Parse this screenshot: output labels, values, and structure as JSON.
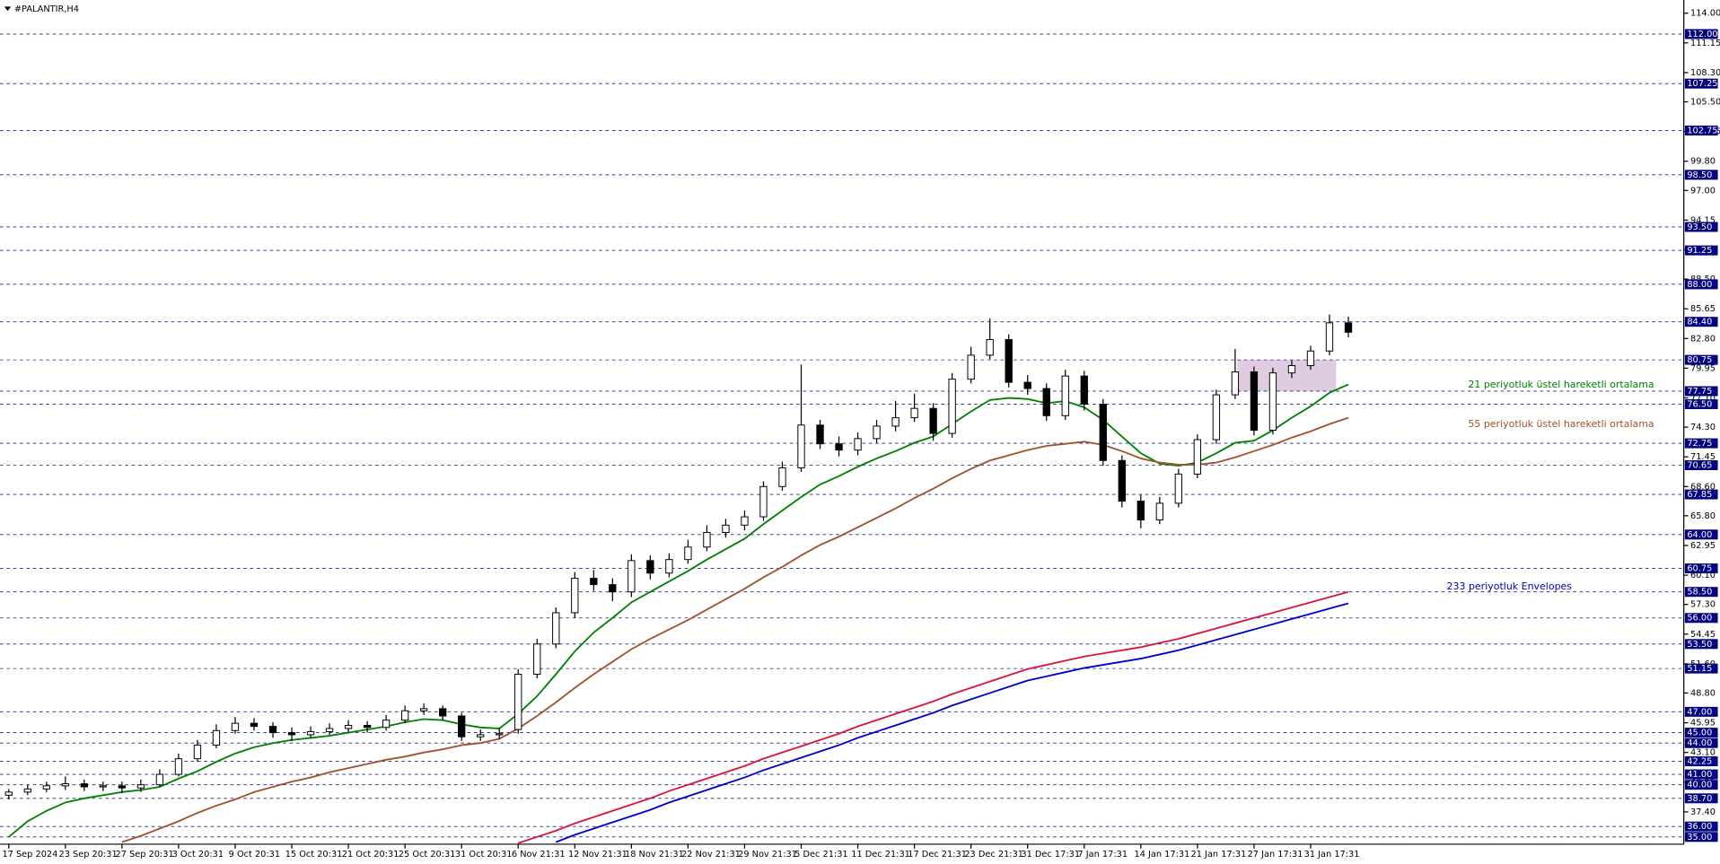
{
  "chart_data": {
    "type": "candlestick",
    "title": "#PALANTIR,H4",
    "categories": [
      "17 Sep 2024",
      null,
      null,
      "23 Sep 20:31",
      null,
      null,
      "27 Sep 20:31",
      null,
      null,
      "3 Oct 20:31",
      null,
      null,
      "9 Oct 20:31",
      null,
      null,
      "15 Oct 20:31",
      null,
      null,
      "21 Oct 20:31",
      null,
      null,
      "25 Oct 20:31",
      null,
      null,
      "31 Oct 20:31",
      null,
      null,
      "6 Nov 21:31",
      null,
      null,
      "12 Nov 21:31",
      null,
      null,
      "18 Nov 21:31",
      null,
      null,
      "22 Nov 21:31",
      null,
      null,
      "29 Nov 21:31",
      null,
      null,
      "5 Dec 21:31",
      null,
      null,
      "11 Dec 21:31",
      null,
      null,
      "17 Dec 21:31",
      null,
      null,
      "23 Dec 21:31",
      null,
      null,
      "31 Dec 17:31",
      null,
      null,
      "7 Jan 17:31",
      null,
      null,
      "14 Jan 17:31",
      null,
      null,
      "21 Jan 17:31",
      null,
      null,
      "27 Jan 17:31",
      null,
      null,
      "31 Jan 17:31",
      null,
      null
    ],
    "candles": [
      [
        39.0,
        39.6,
        38.6,
        39.3
      ],
      [
        39.3,
        40.0,
        39.0,
        39.6
      ],
      [
        39.6,
        40.3,
        39.3,
        39.9
      ],
      [
        39.9,
        40.8,
        39.5,
        40.1
      ],
      [
        40.1,
        40.5,
        39.4,
        39.8
      ],
      [
        39.8,
        40.3,
        39.4,
        39.9
      ],
      [
        39.9,
        40.3,
        39.2,
        39.7
      ],
      [
        39.7,
        40.5,
        39.3,
        40.0
      ],
      [
        40.0,
        41.5,
        39.8,
        41.0
      ],
      [
        41.0,
        43.0,
        40.8,
        42.5
      ],
      [
        42.5,
        44.3,
        42.2,
        43.8
      ],
      [
        43.8,
        45.8,
        43.5,
        45.2
      ],
      [
        45.2,
        46.5,
        44.9,
        45.9
      ],
      [
        45.9,
        46.4,
        45.2,
        45.6
      ],
      [
        45.6,
        46.0,
        44.5,
        45.0
      ],
      [
        45.0,
        45.5,
        44.2,
        44.8
      ],
      [
        44.8,
        45.6,
        44.5,
        45.1
      ],
      [
        45.1,
        45.9,
        44.8,
        45.4
      ],
      [
        45.4,
        46.2,
        45.0,
        45.7
      ],
      [
        45.7,
        46.1,
        45.0,
        45.5
      ],
      [
        45.5,
        46.7,
        45.2,
        46.2
      ],
      [
        46.2,
        47.6,
        45.9,
        47.1
      ],
      [
        47.1,
        47.8,
        46.7,
        47.3
      ],
      [
        47.3,
        47.6,
        46.2,
        46.6
      ],
      [
        46.6,
        46.9,
        44.2,
        44.6
      ],
      [
        44.6,
        45.3,
        44.2,
        44.8
      ],
      [
        44.8,
        45.4,
        44.4,
        44.9
      ],
      [
        45.3,
        51.1,
        44.9,
        50.6
      ],
      [
        50.6,
        54.0,
        50.2,
        53.5
      ],
      [
        53.5,
        57.0,
        53.1,
        56.5
      ],
      [
        56.5,
        60.4,
        56.0,
        59.8
      ],
      [
        59.8,
        60.6,
        58.6,
        59.2
      ],
      [
        59.2,
        59.8,
        57.6,
        58.5
      ],
      [
        58.5,
        62.1,
        58.0,
        61.5
      ],
      [
        61.5,
        62.0,
        59.7,
        60.3
      ],
      [
        60.3,
        62.2,
        59.9,
        61.6
      ],
      [
        61.6,
        63.5,
        61.2,
        62.8
      ],
      [
        62.8,
        64.9,
        62.4,
        64.2
      ],
      [
        64.2,
        65.5,
        63.7,
        64.9
      ],
      [
        64.9,
        66.3,
        64.4,
        65.7
      ],
      [
        65.7,
        69.1,
        65.3,
        68.6
      ],
      [
        68.6,
        71.0,
        68.2,
        70.4
      ],
      [
        70.4,
        80.3,
        70.0,
        74.5
      ],
      [
        74.5,
        75.0,
        72.2,
        72.7
      ],
      [
        72.7,
        73.4,
        71.5,
        72.1
      ],
      [
        72.1,
        73.8,
        71.6,
        73.2
      ],
      [
        73.2,
        75.0,
        72.8,
        74.4
      ],
      [
        74.4,
        76.8,
        73.9,
        75.2
      ],
      [
        75.2,
        77.5,
        74.8,
        76.1
      ],
      [
        76.1,
        76.6,
        73.0,
        73.7
      ],
      [
        73.7,
        79.5,
        73.3,
        78.9
      ],
      [
        78.9,
        82.0,
        78.5,
        81.2
      ],
      [
        81.2,
        84.7,
        80.8,
        82.7
      ],
      [
        82.7,
        83.2,
        78.1,
        78.6
      ],
      [
        78.6,
        79.3,
        77.4,
        78.0
      ],
      [
        78.0,
        78.5,
        74.9,
        75.4
      ],
      [
        75.4,
        79.8,
        75.0,
        79.2
      ],
      [
        79.2,
        79.7,
        75.9,
        76.5
      ],
      [
        76.5,
        77.0,
        70.6,
        71.1
      ],
      [
        71.1,
        71.6,
        66.6,
        67.2
      ],
      [
        67.2,
        67.8,
        64.6,
        65.4
      ],
      [
        65.4,
        67.6,
        65.0,
        67.0
      ],
      [
        67.0,
        70.3,
        66.6,
        69.8
      ],
      [
        69.8,
        73.6,
        69.4,
        73.1
      ],
      [
        73.1,
        77.9,
        72.7,
        77.4
      ],
      [
        77.4,
        81.8,
        77.0,
        79.6
      ],
      [
        79.6,
        80.1,
        73.5,
        74.0
      ],
      [
        74.0,
        80.0,
        73.6,
        79.5
      ],
      [
        79.5,
        80.7,
        79.0,
        80.2
      ],
      [
        80.2,
        82.1,
        79.8,
        81.6
      ],
      [
        81.6,
        85.1,
        81.2,
        84.3
      ],
      [
        84.3,
        84.9,
        82.9,
        83.4
      ]
    ],
    "series": [
      {
        "name": "21 periyotluk üstel hareketli ortalama",
        "color": "#008000",
        "values": [
          35.0,
          36.5,
          37.5,
          38.3,
          38.7,
          39.0,
          39.3,
          39.5,
          39.8,
          40.6,
          41.3,
          42.2,
          43.0,
          43.6,
          44.0,
          44.3,
          44.5,
          44.7,
          45.0,
          45.3,
          45.6,
          46.0,
          46.3,
          46.2,
          45.8,
          45.5,
          45.4,
          46.8,
          48.5,
          50.6,
          52.8,
          54.6,
          56.0,
          57.5,
          58.5,
          59.5,
          60.5,
          61.6,
          62.6,
          63.6,
          65.0,
          66.3,
          67.6,
          68.8,
          69.6,
          70.5,
          71.3,
          72.0,
          72.8,
          73.4,
          74.6,
          75.8,
          76.9,
          77.1,
          77.0,
          76.6,
          76.8,
          76.2,
          75.0,
          73.4,
          71.8,
          70.8,
          70.6,
          70.9,
          71.8,
          72.8,
          73.0,
          74.0,
          75.2,
          76.3,
          77.6,
          78.4
        ]
      },
      {
        "name": "55 periyotluk üstel hareketli ortalama",
        "color": "#a0522d",
        "values": [
          null,
          null,
          null,
          null,
          null,
          null,
          34.5,
          35.1,
          35.8,
          36.5,
          37.3,
          38.0,
          38.6,
          39.3,
          39.8,
          40.3,
          40.7,
          41.2,
          41.6,
          42.0,
          42.4,
          42.7,
          43.1,
          43.4,
          43.8,
          44.0,
          44.4,
          45.4,
          46.6,
          47.9,
          49.3,
          50.6,
          51.8,
          53.0,
          54.0,
          54.9,
          55.8,
          56.8,
          57.8,
          58.8,
          59.9,
          60.9,
          62.0,
          63.0,
          63.8,
          64.7,
          65.6,
          66.5,
          67.5,
          68.4,
          69.4,
          70.3,
          71.1,
          71.6,
          72.1,
          72.5,
          72.7,
          72.9,
          72.6,
          72.0,
          71.3,
          70.9,
          70.7,
          70.7,
          70.9,
          71.4,
          72.0,
          72.6,
          73.3,
          73.9,
          74.6,
          75.2
        ]
      },
      {
        "name": "233 periyotluk Envelopes",
        "color": "#dc143c",
        "lower_color": "#0000cd",
        "values": [
          null,
          null,
          null,
          null,
          null,
          null,
          null,
          null,
          null,
          null,
          null,
          null,
          null,
          null,
          null,
          null,
          null,
          null,
          null,
          null,
          null,
          null,
          null,
          null,
          null,
          null,
          null,
          34.4,
          35.0,
          35.6,
          36.3,
          36.9,
          37.5,
          38.1,
          38.7,
          39.4,
          40.0,
          40.6,
          41.2,
          41.8,
          42.5,
          43.1,
          43.7,
          44.3,
          44.9,
          45.6,
          46.2,
          46.8,
          47.4,
          48.0,
          48.7,
          49.3,
          49.9,
          50.5,
          51.1,
          51.5,
          51.9,
          52.3,
          52.6,
          52.9,
          53.2,
          53.6,
          54.0,
          54.5,
          55.0,
          55.5,
          56.0,
          56.5,
          57.0,
          57.5,
          58.0,
          58.5
        ],
        "lower": [
          null,
          null,
          null,
          null,
          null,
          null,
          null,
          null,
          null,
          null,
          null,
          null,
          null,
          null,
          null,
          null,
          null,
          null,
          null,
          null,
          null,
          null,
          null,
          null,
          null,
          null,
          null,
          null,
          null,
          34.5,
          35.2,
          35.8,
          36.4,
          37.0,
          37.6,
          38.3,
          38.9,
          39.5,
          40.1,
          40.7,
          41.4,
          42.0,
          42.6,
          43.2,
          43.8,
          44.5,
          45.1,
          45.7,
          46.3,
          46.9,
          47.6,
          48.2,
          48.8,
          49.4,
          50.0,
          50.4,
          50.8,
          51.2,
          51.5,
          51.8,
          52.1,
          52.5,
          52.9,
          53.4,
          53.9,
          54.4,
          54.9,
          55.4,
          55.9,
          56.4,
          56.9,
          57.4
        ]
      }
    ],
    "zone": {
      "low": 77.75,
      "high": 80.75,
      "color": "#d8bfd8"
    },
    "ylim": [
      34.3,
      115.26
    ],
    "yticks": [
      {
        "value": 114,
        "label": "114.00"
      },
      {
        "value": 111.15,
        "label": "111.15"
      },
      {
        "value": 108.3,
        "label": "108.30"
      },
      {
        "value": 105.5,
        "label": "105.50"
      },
      {
        "value": 102.65,
        "label": "102.65"
      },
      {
        "value": 99.8,
        "label": "99.80"
      },
      {
        "value": 97,
        "label": "97.00"
      },
      {
        "value": 94.15,
        "label": "94.15"
      },
      {
        "value": 91.3,
        "label": "91.30"
      },
      {
        "value": 88.5,
        "label": "88.50"
      },
      {
        "value": 85.65,
        "label": "85.65"
      },
      {
        "value": 82.8,
        "label": "82.80"
      },
      {
        "value": 79.95,
        "label": "79.95"
      },
      {
        "value": 77.1,
        "label": "77.10"
      },
      {
        "value": 74.3,
        "label": "74.30"
      },
      {
        "value": 71.45,
        "label": "71.45"
      },
      {
        "value": 68.6,
        "label": "68.60"
      },
      {
        "value": 65.8,
        "label": "65.80"
      },
      {
        "value": 62.95,
        "label": "62.95"
      },
      {
        "value": 60.1,
        "label": "60.10"
      },
      {
        "value": 57.3,
        "label": "57.30"
      },
      {
        "value": 54.45,
        "label": "54.45"
      },
      {
        "value": 51.6,
        "label": "51.60"
      },
      {
        "value": 48.8,
        "label": "48.80"
      },
      {
        "value": 45.95,
        "label": "45.95"
      },
      {
        "value": 43.1,
        "label": "43.10"
      },
      {
        "value": 40.25,
        "label": "40.25"
      },
      {
        "value": 37.4,
        "label": "37.40"
      }
    ],
    "levels": [
      {
        "value": 112,
        "label": "112.00"
      },
      {
        "value": 107.25,
        "label": "107.25"
      },
      {
        "value": 102.75,
        "label": "102.75"
      },
      {
        "value": 98.5,
        "label": "98.50"
      },
      {
        "value": 93.5,
        "label": "93.50"
      },
      {
        "value": 91.25,
        "label": "91.25"
      },
      {
        "value": 88,
        "label": "88.00"
      },
      {
        "value": 84.4,
        "label": "84.40"
      },
      {
        "value": 80.75,
        "label": "80.75"
      },
      {
        "value": 77.75,
        "label": "77.75"
      },
      {
        "value": 76.5,
        "label": "76.50"
      },
      {
        "value": 72.75,
        "label": "72.75"
      },
      {
        "value": 70.65,
        "label": "70.65"
      },
      {
        "value": 67.85,
        "label": "67.85"
      },
      {
        "value": 64,
        "label": "64.00"
      },
      {
        "value": 60.75,
        "label": "60.75"
      },
      {
        "value": 58.5,
        "label": "58.50"
      },
      {
        "value": 56,
        "label": "56.00"
      },
      {
        "value": 53.5,
        "label": "53.50"
      },
      {
        "value": 51.15,
        "label": "51.15"
      },
      {
        "value": 47,
        "label": "47.00"
      },
      {
        "value": 45,
        "label": "45.00"
      },
      {
        "value": 44,
        "label": "44.00"
      },
      {
        "value": 42.25,
        "label": "42.25"
      },
      {
        "value": 41,
        "label": "41.00"
      },
      {
        "value": 40,
        "label": "40.00"
      },
      {
        "value": 38.7,
        "label": "38.70"
      },
      {
        "value": 36,
        "label": "36.00"
      },
      {
        "value": 35,
        "label": "35.00"
      }
    ]
  }
}
